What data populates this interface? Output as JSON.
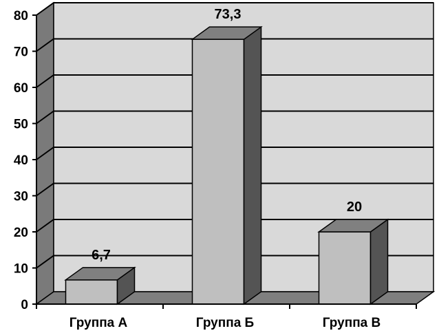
{
  "chart_data": {
    "type": "bar",
    "title": "",
    "xlabel": "",
    "ylabel": "",
    "categories": [
      "Группа А",
      "Группа Б",
      "Группа В"
    ],
    "values": [
      6.7,
      73.3,
      20
    ],
    "value_labels": [
      "6,7",
      "73,3",
      "20"
    ],
    "ylim": [
      0,
      80
    ],
    "yticks": [
      0,
      10,
      20,
      30,
      40,
      50,
      60,
      70,
      80
    ],
    "grid": true,
    "legend": "none",
    "style": "3d-column",
    "colors": {
      "bar_front": "#bfbfbf",
      "bar_top": "#808080",
      "bar_side": "#545454",
      "wall": "#d9d9d9",
      "side_wall": "#7a7a7a",
      "floor": "#7f7f7f",
      "gridline": "#000000"
    }
  }
}
